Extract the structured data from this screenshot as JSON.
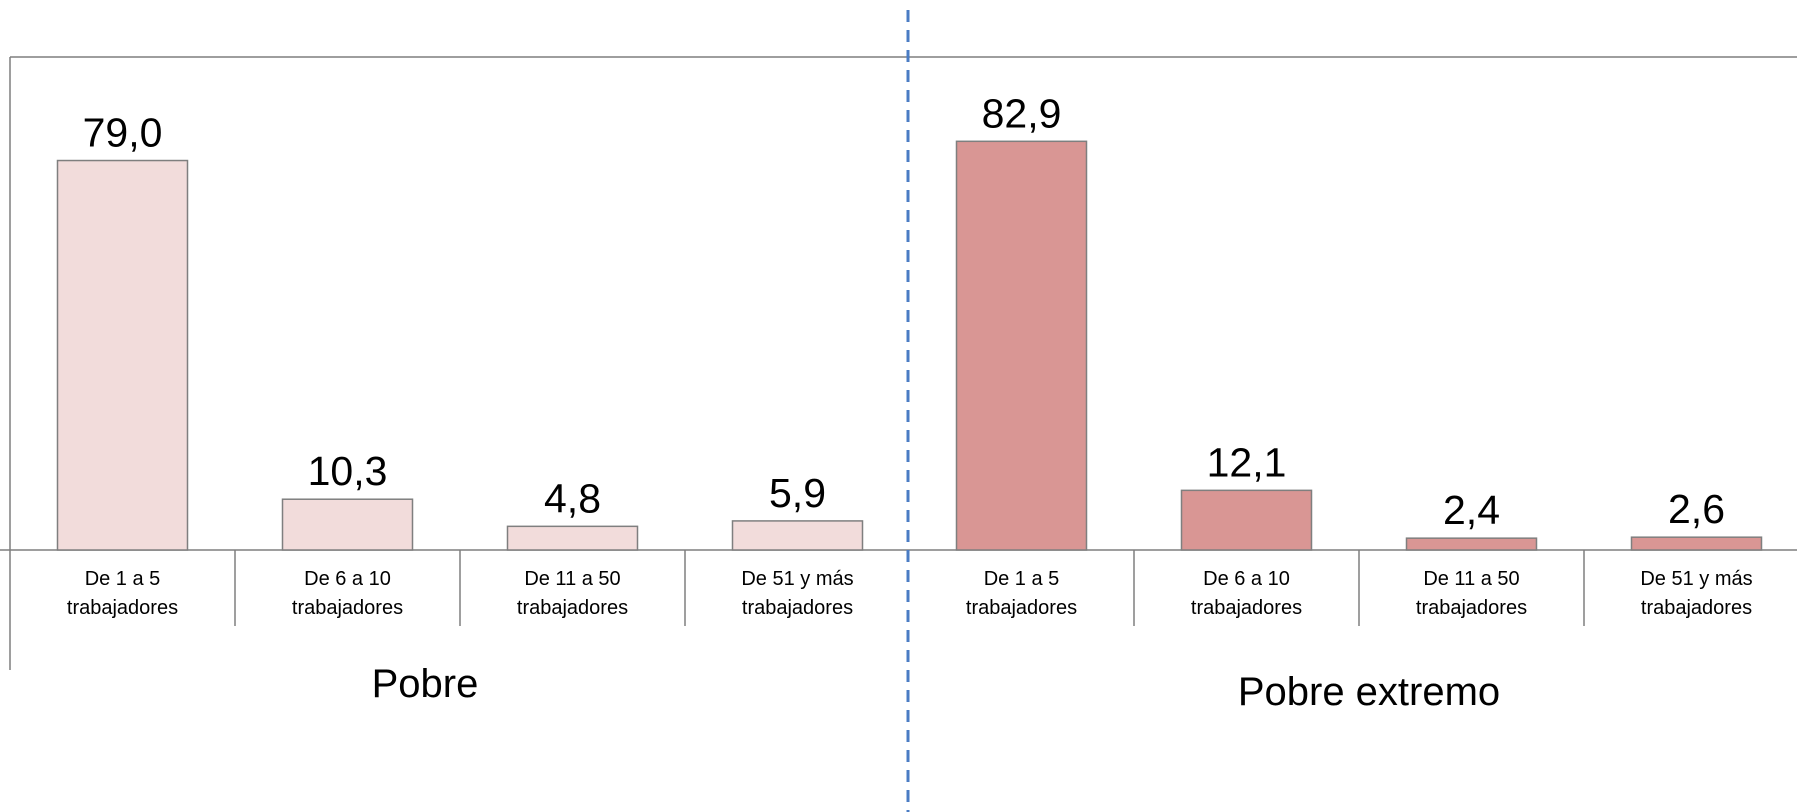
{
  "chart_data": [
    {
      "type": "bar",
      "xlabel": "Pobre",
      "categories": [
        "De 1 a 5 trabajadores",
        "De 6 a 10 trabajadores",
        "De 11 a 50 trabajadores",
        "De 51 y más trabajadores"
      ],
      "values": [
        79.0,
        10.3,
        4.8,
        5.9
      ],
      "value_labels": [
        "79,0",
        "10,3",
        "4,8",
        "5,9"
      ],
      "color": "#f2dcdb",
      "ylim": [
        0,
        100
      ]
    },
    {
      "type": "bar",
      "xlabel": "Pobre extremo",
      "categories": [
        "De 1 a 5 trabajadores",
        "De 6 a 10 trabajadores",
        "De 11 a 50 trabajadores",
        "De 51 y más trabajadores"
      ],
      "values": [
        82.9,
        12.1,
        2.4,
        2.6
      ],
      "value_labels": [
        "82,9",
        "12,1",
        "2,4",
        "2,6"
      ],
      "color": "#d99694",
      "ylim": [
        0,
        100
      ]
    }
  ]
}
